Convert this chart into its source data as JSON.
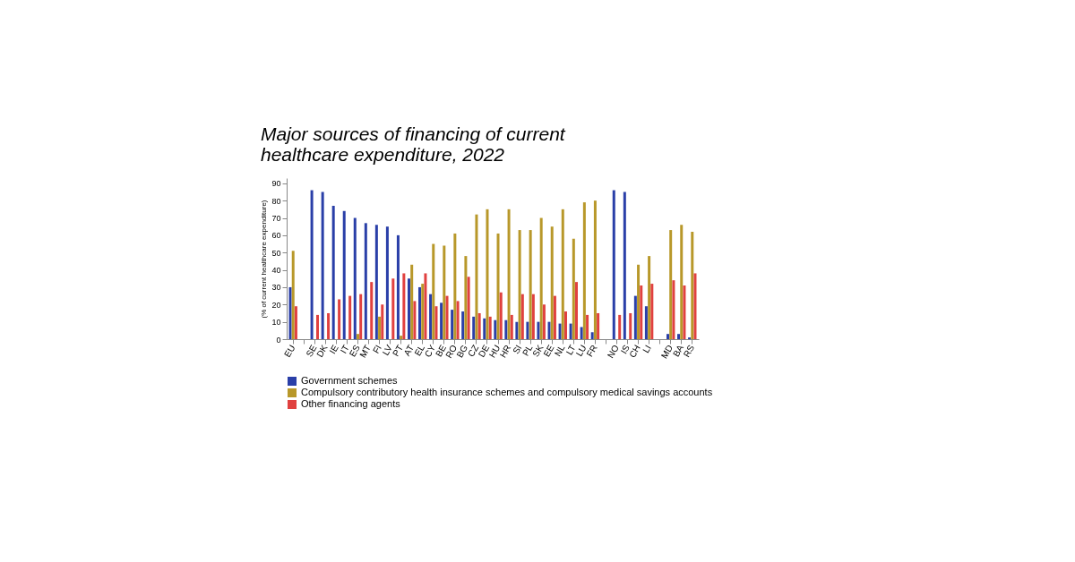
{
  "chart_data": {
    "type": "bar",
    "title": "Major sources of financing of current healthcare expenditure, 2022",
    "ylabel": "(% of current healthcare expenditure)",
    "categories": [
      "EU",
      null,
      "SE",
      "DK",
      "IE",
      "IT",
      "ES",
      "MT",
      "FI",
      "LV",
      "PT",
      "AT",
      "EL",
      "CY",
      "BE",
      "RO",
      "BG",
      "CZ",
      "DE",
      "HU",
      "HR",
      "SI",
      "PL",
      "SK",
      "EE",
      "NL",
      "LT",
      "LU",
      "FR",
      null,
      "NO",
      "IS",
      "CH",
      "LI",
      null,
      "MD",
      "BA",
      "RS"
    ],
    "series": [
      {
        "name": "Government schemes",
        "color": "#2a3fa8",
        "values": [
          30,
          null,
          86,
          85,
          77,
          74,
          70,
          67,
          66,
          65,
          60,
          35,
          30,
          26,
          21,
          17,
          16,
          13,
          12,
          11,
          11,
          10,
          10,
          10,
          10,
          9,
          9,
          7,
          4,
          null,
          86,
          85,
          25,
          19,
          null,
          3,
          3,
          1
        ]
      },
      {
        "name": "Compulsory contributory health insurance schemes and compulsory medical savings accounts",
        "color": "#b8982a",
        "values": [
          51,
          null,
          null,
          null,
          null,
          null,
          3,
          null,
          13,
          null,
          2,
          43,
          32,
          55,
          54,
          61,
          48,
          72,
          75,
          61,
          75,
          63,
          63,
          70,
          65,
          75,
          58,
          79,
          80,
          null,
          null,
          null,
          43,
          48,
          null,
          63,
          66,
          62
        ]
      },
      {
        "name": "Other financing agents",
        "color": "#e0413f",
        "values": [
          19,
          null,
          14,
          15,
          23,
          25,
          26,
          33,
          20,
          35,
          38,
          22,
          38,
          19,
          25,
          22,
          36,
          15,
          13,
          27,
          14,
          26,
          26,
          20,
          25,
          16,
          33,
          14,
          15,
          null,
          14,
          15,
          31,
          32,
          null,
          34,
          31,
          38
        ]
      }
    ],
    "ylim": [
      0,
      93
    ],
    "yticks": [
      0,
      10,
      20,
      30,
      40,
      50,
      60,
      70,
      80,
      90
    ],
    "grid": false,
    "legend": "bottom"
  }
}
